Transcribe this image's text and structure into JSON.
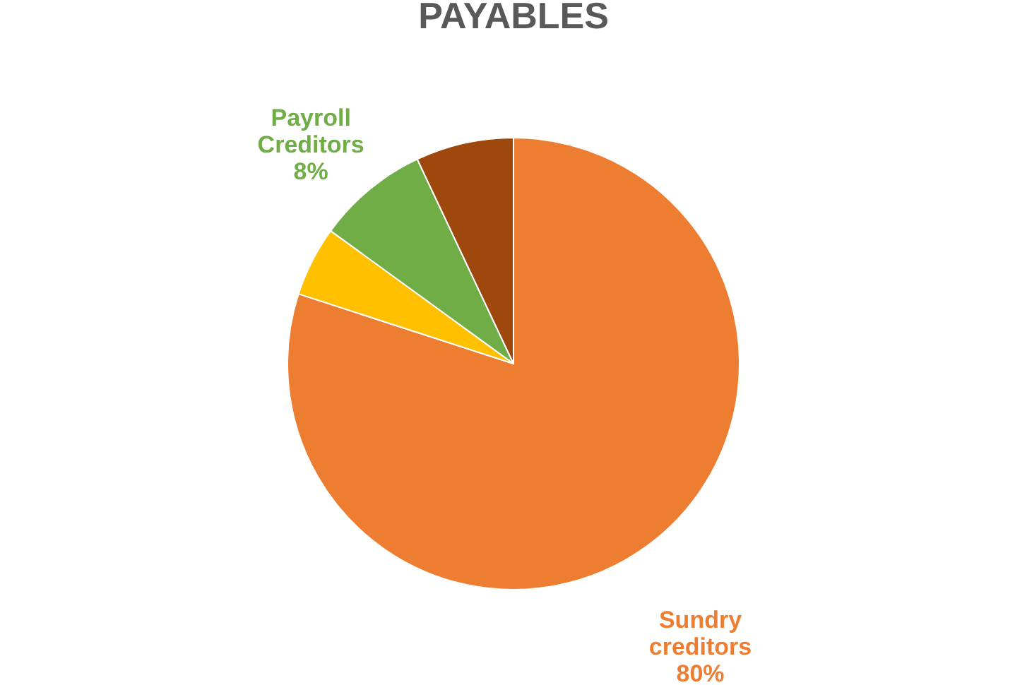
{
  "chart_data": {
    "type": "pie",
    "title": "PAYABLES",
    "categories": [
      "Sundry creditors",
      null,
      "Payroll Creditors",
      null
    ],
    "values": [
      80,
      5,
      8,
      7
    ],
    "colors": [
      "#ed7d31",
      "#ffc000",
      "#70ad47",
      "#9e480e"
    ],
    "value_labels": [
      "80%",
      null,
      "8%",
      null
    ],
    "legend": false
  }
}
